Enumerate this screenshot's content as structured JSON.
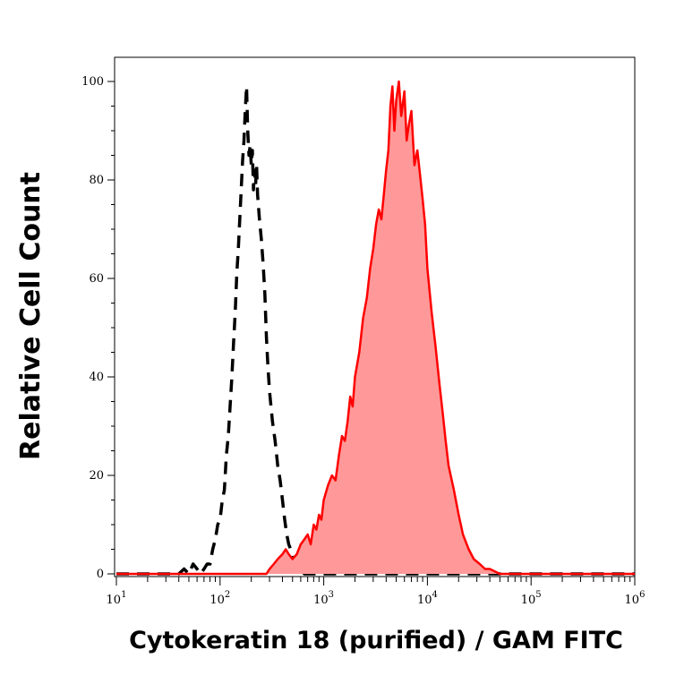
{
  "chart_data": {
    "type": "area",
    "title": "",
    "xlabel": "Cytokeratin 18 (purified) / GAM FITC",
    "ylabel": "Relative Cell Count",
    "x_scale": "log",
    "xlim": [
      10,
      1000000
    ],
    "ylim": [
      0,
      100
    ],
    "x_ticks": [
      {
        "value": 10,
        "base": "10",
        "exp": "1"
      },
      {
        "value": 100,
        "base": "10",
        "exp": "2"
      },
      {
        "value": 1000,
        "base": "10",
        "exp": "3"
      },
      {
        "value": 10000,
        "base": "10",
        "exp": "4"
      },
      {
        "value": 100000,
        "base": "10",
        "exp": "5"
      },
      {
        "value": 1000000,
        "base": "10",
        "exp": "6"
      }
    ],
    "y_ticks": [
      {
        "value": 0,
        "label": "0"
      },
      {
        "value": 20,
        "label": "20"
      },
      {
        "value": 40,
        "label": "40"
      },
      {
        "value": 60,
        "label": "60"
      },
      {
        "value": 80,
        "label": "80"
      },
      {
        "value": 100,
        "label": "100"
      }
    ],
    "grid": false,
    "legend": "none",
    "series": [
      {
        "style": "dashed",
        "color": "#000000",
        "fill": "none",
        "x": [
          10,
          40,
          45,
          50,
          55,
          60,
          65,
          70,
          75,
          80,
          85,
          90,
          95,
          100,
          105,
          110,
          115,
          120,
          125,
          130,
          135,
          140,
          145,
          150,
          155,
          160,
          165,
          170,
          175,
          180,
          185,
          190,
          195,
          200,
          205,
          210,
          215,
          220,
          225,
          230,
          240,
          250,
          260,
          270,
          280,
          290,
          300,
          320,
          340,
          360,
          380,
          400,
          420,
          440,
          460,
          480,
          500,
          520,
          540,
          560,
          600,
          650,
          700,
          1000000
        ],
        "y": [
          0,
          0,
          1,
          0,
          2,
          1,
          0,
          1,
          2,
          2,
          5,
          7,
          10,
          11,
          15,
          17,
          24,
          28,
          34,
          40,
          47,
          53,
          61,
          66,
          72,
          78,
          84,
          88,
          94,
          99,
          90,
          85,
          87,
          83,
          86,
          78,
          82,
          79,
          83,
          77,
          72,
          68,
          63,
          57,
          48,
          42,
          37,
          31,
          27,
          22,
          19,
          15,
          11,
          8,
          6,
          5,
          3,
          2,
          4,
          1,
          1,
          0,
          0,
          0
        ]
      },
      {
        "style": "solid",
        "color": "#ff0000",
        "fill": "#ff9999",
        "x": [
          10,
          280,
          300,
          330,
          360,
          400,
          430,
          460,
          500,
          550,
          600,
          650,
          700,
          750,
          800,
          850,
          900,
          950,
          1000,
          1100,
          1200,
          1300,
          1400,
          1500,
          1600,
          1700,
          1800,
          1900,
          2000,
          2200,
          2400,
          2600,
          2800,
          3000,
          3200,
          3400,
          3600,
          3800,
          4000,
          4200,
          4400,
          4600,
          4800,
          5000,
          5300,
          5600,
          6000,
          6300,
          6600,
          7000,
          7500,
          8000,
          8500,
          9000,
          9500,
          10000,
          11000,
          12000,
          13000,
          14000,
          15000,
          16000,
          18000,
          20000,
          22000,
          25000,
          28000,
          32000,
          36000,
          40000,
          50000,
          1000000
        ],
        "y": [
          0,
          0,
          1,
          2,
          3,
          4,
          5,
          4,
          3,
          4,
          6,
          7,
          8,
          6,
          10,
          9,
          12,
          11,
          15,
          18,
          20,
          19,
          24,
          28,
          27,
          31,
          36,
          34,
          40,
          45,
          52,
          56,
          62,
          66,
          71,
          74,
          72,
          77,
          82,
          86,
          95,
          99,
          90,
          96,
          100,
          93,
          98,
          88,
          91,
          94,
          83,
          86,
          81,
          76,
          71,
          62,
          53,
          46,
          39,
          33,
          27,
          22,
          17,
          12,
          8,
          5,
          3,
          2,
          1,
          1,
          0,
          0
        ]
      }
    ]
  }
}
